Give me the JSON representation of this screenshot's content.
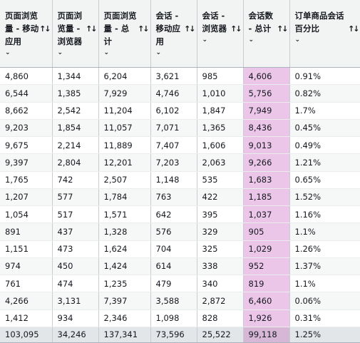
{
  "headers": [
    {
      "label": "页面浏览量 - 移动应用",
      "lines": [
        "页面浏览",
        "量 - 移动",
        "应用"
      ]
    },
    {
      "label": "页面浏览量 - 浏览器",
      "lines": [
        "页面浏",
        "览量 -",
        "浏览器"
      ]
    },
    {
      "label": "页面浏览量 - 总计",
      "lines": [
        "页面浏览",
        "量 - 总计"
      ]
    },
    {
      "label": "会话 - 移动应用",
      "lines": [
        "会话 -",
        "移动应",
        "用"
      ]
    },
    {
      "label": "会话 - 浏览器",
      "lines": [
        "会话 -",
        "浏览器"
      ]
    },
    {
      "label": "会话数 - 总计",
      "lines": [
        "会话数",
        "- 总计"
      ]
    },
    {
      "label": "订单商品会话百分比",
      "lines": [
        "订单商品会话",
        "百分比"
      ]
    }
  ],
  "rows": [
    [
      "4,860",
      "1,344",
      "6,204",
      "3,621",
      "985",
      "4,606",
      "0.91%"
    ],
    [
      "6,544",
      "1,385",
      "7,929",
      "4,746",
      "1,010",
      "5,756",
      "0.82%"
    ],
    [
      "8,662",
      "2,542",
      "11,204",
      "6,102",
      "1,847",
      "7,949",
      "1.7%"
    ],
    [
      "9,203",
      "1,854",
      "11,057",
      "7,071",
      "1,365",
      "8,436",
      "0.45%"
    ],
    [
      "9,675",
      "2,214",
      "11,889",
      "7,407",
      "1,606",
      "9,013",
      "0.49%"
    ],
    [
      "9,397",
      "2,804",
      "12,201",
      "7,203",
      "2,063",
      "9,266",
      "1.21%"
    ],
    [
      "1,765",
      "742",
      "2,507",
      "1,148",
      "535",
      "1,683",
      "0.65%"
    ],
    [
      "1,207",
      "577",
      "1,784",
      "763",
      "422",
      "1,185",
      "1.52%"
    ],
    [
      "1,054",
      "517",
      "1,571",
      "642",
      "395",
      "1,037",
      "1.16%"
    ],
    [
      "891",
      "437",
      "1,328",
      "576",
      "329",
      "905",
      "1.1%"
    ],
    [
      "1,151",
      "473",
      "1,624",
      "704",
      "325",
      "1,029",
      "1.26%"
    ],
    [
      "974",
      "450",
      "1,424",
      "614",
      "338",
      "952",
      "1.37%"
    ],
    [
      "761",
      "474",
      "1,235",
      "479",
      "340",
      "819",
      "1.1%"
    ],
    [
      "4,266",
      "3,131",
      "7,397",
      "3,588",
      "2,872",
      "6,460",
      "0.06%"
    ],
    [
      "1,412",
      "934",
      "2,346",
      "1,098",
      "828",
      "1,926",
      "0.31%"
    ]
  ],
  "totals": [
    "103,095",
    "34,246",
    "137,341",
    "73,596",
    "25,522",
    "99,118",
    "1.25%"
  ],
  "highlight_column": 5,
  "colors": {
    "highlight": "#ebc6e8",
    "header_bg": "#f2f3f3",
    "border": "#c8ccd2"
  },
  "icons": {
    "sort": "sort-arrows-icon",
    "dropdown": "chevron-down-icon"
  }
}
